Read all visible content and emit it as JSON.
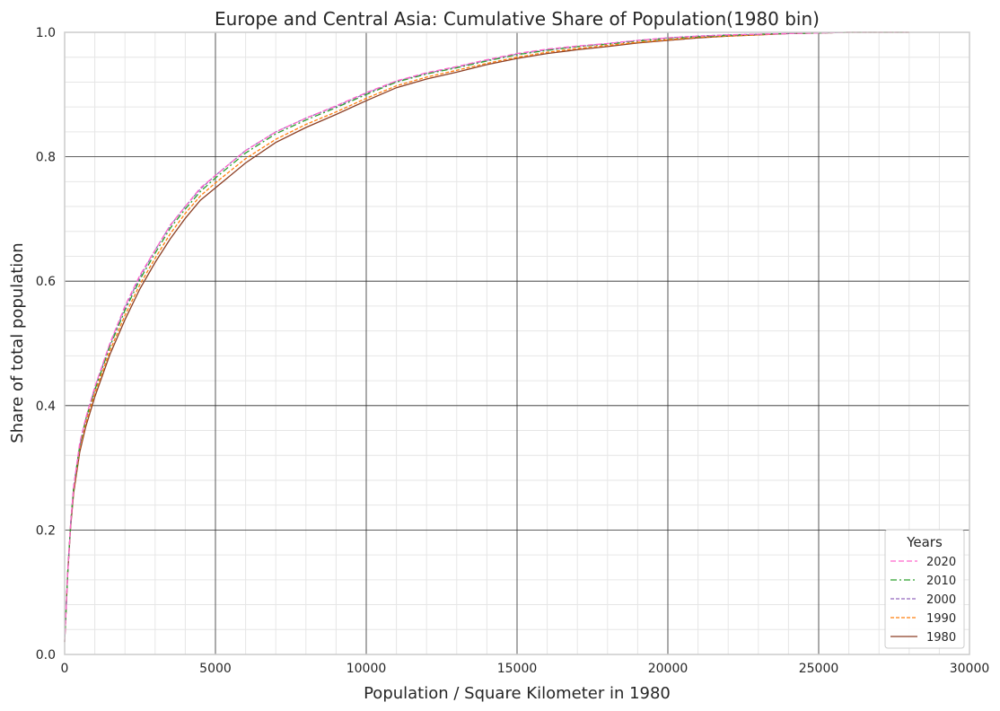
{
  "chart_data": {
    "type": "line",
    "title": "Europe and Central Asia: Cumulative Share of Population(1980 bin)",
    "xlabel": "Population / Square Kilometer in 1980",
    "ylabel": "Share of total population",
    "xlim": [
      0,
      30000
    ],
    "ylim": [
      0,
      1.0
    ],
    "x_ticks": [
      0,
      5000,
      10000,
      15000,
      20000,
      25000,
      30000
    ],
    "x_tick_labels": [
      "0",
      "5000",
      "10000",
      "15000",
      "20000",
      "25000",
      "30000"
    ],
    "y_ticks": [
      0,
      0.2,
      0.4,
      0.6,
      0.8,
      1.0
    ],
    "y_tick_labels": [
      "0.0",
      "0.2",
      "0.4",
      "0.6",
      "0.8",
      "1.0"
    ],
    "grid": true,
    "minor_grid": true,
    "legend": {
      "title": "Years",
      "placement": "lower-right"
    },
    "x": [
      0,
      100,
      200,
      300,
      500,
      700,
      1000,
      1500,
      2000,
      2500,
      3000,
      3500,
      4000,
      4500,
      5000,
      6000,
      7000,
      8000,
      9000,
      10000,
      11000,
      12000,
      13000,
      14000,
      15000,
      16000,
      17000,
      18000,
      19000,
      20000,
      21000,
      22000,
      23000,
      24000,
      25000,
      26000,
      28000
    ],
    "series": [
      {
        "name": "2020",
        "color": "#ff66cc",
        "dash": "6,3",
        "values": [
          0.02,
          0.13,
          0.21,
          0.27,
          0.34,
          0.38,
          0.43,
          0.5,
          0.56,
          0.61,
          0.65,
          0.69,
          0.72,
          0.75,
          0.77,
          0.81,
          0.84,
          0.862,
          0.882,
          0.903,
          0.922,
          0.935,
          0.945,
          0.956,
          0.966,
          0.973,
          0.978,
          0.982,
          0.987,
          0.991,
          0.994,
          0.996,
          0.997,
          0.998,
          0.999,
          1.0,
          1.0
        ]
      },
      {
        "name": "2010",
        "color": "#2ca02c",
        "dash": "7,3,2,3",
        "values": [
          0.02,
          0.13,
          0.21,
          0.27,
          0.335,
          0.378,
          0.425,
          0.495,
          0.553,
          0.603,
          0.645,
          0.685,
          0.716,
          0.744,
          0.766,
          0.806,
          0.837,
          0.859,
          0.879,
          0.9,
          0.92,
          0.933,
          0.943,
          0.954,
          0.964,
          0.971,
          0.977,
          0.981,
          0.986,
          0.99,
          0.993,
          0.995,
          0.997,
          0.998,
          0.999,
          1.0,
          1.0
        ]
      },
      {
        "name": "2000",
        "color": "#9467bd",
        "dash": "4,2",
        "values": [
          0.02,
          0.13,
          0.21,
          0.27,
          0.335,
          0.378,
          0.428,
          0.498,
          0.557,
          0.607,
          0.65,
          0.689,
          0.72,
          0.748,
          0.77,
          0.81,
          0.84,
          0.862,
          0.881,
          0.902,
          0.921,
          0.934,
          0.944,
          0.955,
          0.965,
          0.972,
          0.977,
          0.982,
          0.987,
          0.991,
          0.994,
          0.996,
          0.997,
          0.998,
          0.999,
          1.0,
          1.0
        ]
      },
      {
        "name": "1990",
        "color": "#ff7f0e",
        "dash": "4,2",
        "values": [
          0.02,
          0.13,
          0.21,
          0.265,
          0.33,
          0.372,
          0.42,
          0.488,
          0.545,
          0.595,
          0.637,
          0.676,
          0.709,
          0.737,
          0.758,
          0.797,
          0.828,
          0.852,
          0.872,
          0.894,
          0.914,
          0.928,
          0.939,
          0.95,
          0.96,
          0.968,
          0.974,
          0.979,
          0.984,
          0.988,
          0.992,
          0.994,
          0.996,
          0.998,
          0.999,
          1.0,
          1.0
        ]
      },
      {
        "name": "1980",
        "color": "#8c3f24",
        "dash": "",
        "values": [
          0.02,
          0.13,
          0.205,
          0.26,
          0.325,
          0.366,
          0.414,
          0.482,
          0.538,
          0.588,
          0.63,
          0.668,
          0.701,
          0.73,
          0.75,
          0.79,
          0.823,
          0.847,
          0.868,
          0.89,
          0.911,
          0.925,
          0.936,
          0.948,
          0.958,
          0.966,
          0.972,
          0.977,
          0.983,
          0.987,
          0.991,
          0.994,
          0.996,
          0.998,
          0.999,
          1.0,
          1.0
        ]
      }
    ]
  }
}
